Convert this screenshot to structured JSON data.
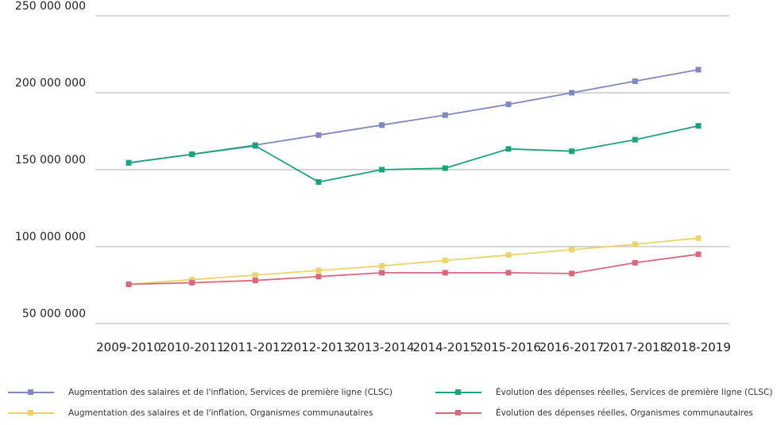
{
  "chart_data": {
    "type": "line",
    "categories": [
      "2009-2010",
      "2010-2011",
      "2011-2012",
      "2012-2013",
      "2013-2014",
      "2014-2015",
      "2015-2016",
      "2016-2017",
      "2017-2018",
      "2018-2019"
    ],
    "ylim": [
      50000000,
      250000000
    ],
    "yticks": [
      50000000,
      100000000,
      150000000,
      200000000,
      250000000
    ],
    "ytick_labels": [
      "50 000 000",
      "100 000 000",
      "150 000 000",
      "200 000 000",
      "250 000 000"
    ],
    "grid": "horizontal",
    "legend_position": "bottom",
    "series": [
      {
        "name": "Augmentation des salaires et de l'inflation, Services de première ligne (CLSC)",
        "color": "#8088c0",
        "values": [
          154500000,
          160000000,
          166000000,
          172500000,
          179000000,
          185500000,
          192500000,
          200000000,
          207500000,
          215000000
        ]
      },
      {
        "name": "Évolution des dépenses réelles, Services de première ligne (CLSC)",
        "color": "#1aa37f",
        "values": [
          154500000,
          160000000,
          165500000,
          142000000,
          150000000,
          151000000,
          163500000,
          162000000,
          169500000,
          178500000
        ]
      },
      {
        "name": "Augmentation des salaires et de l'inflation, Organismes communautaires",
        "color": "#ecd36a",
        "values": [
          75500000,
          78500000,
          81500000,
          84500000,
          87500000,
          91000000,
          94500000,
          98000000,
          101500000,
          105500000
        ]
      },
      {
        "name": "Évolution des dépenses réelles, Organismes communautaires",
        "color": "#d9687e",
        "values": [
          75500000,
          76500000,
          78000000,
          80500000,
          83000000,
          83000000,
          83000000,
          82500000,
          89500000,
          95000000
        ]
      }
    ]
  }
}
